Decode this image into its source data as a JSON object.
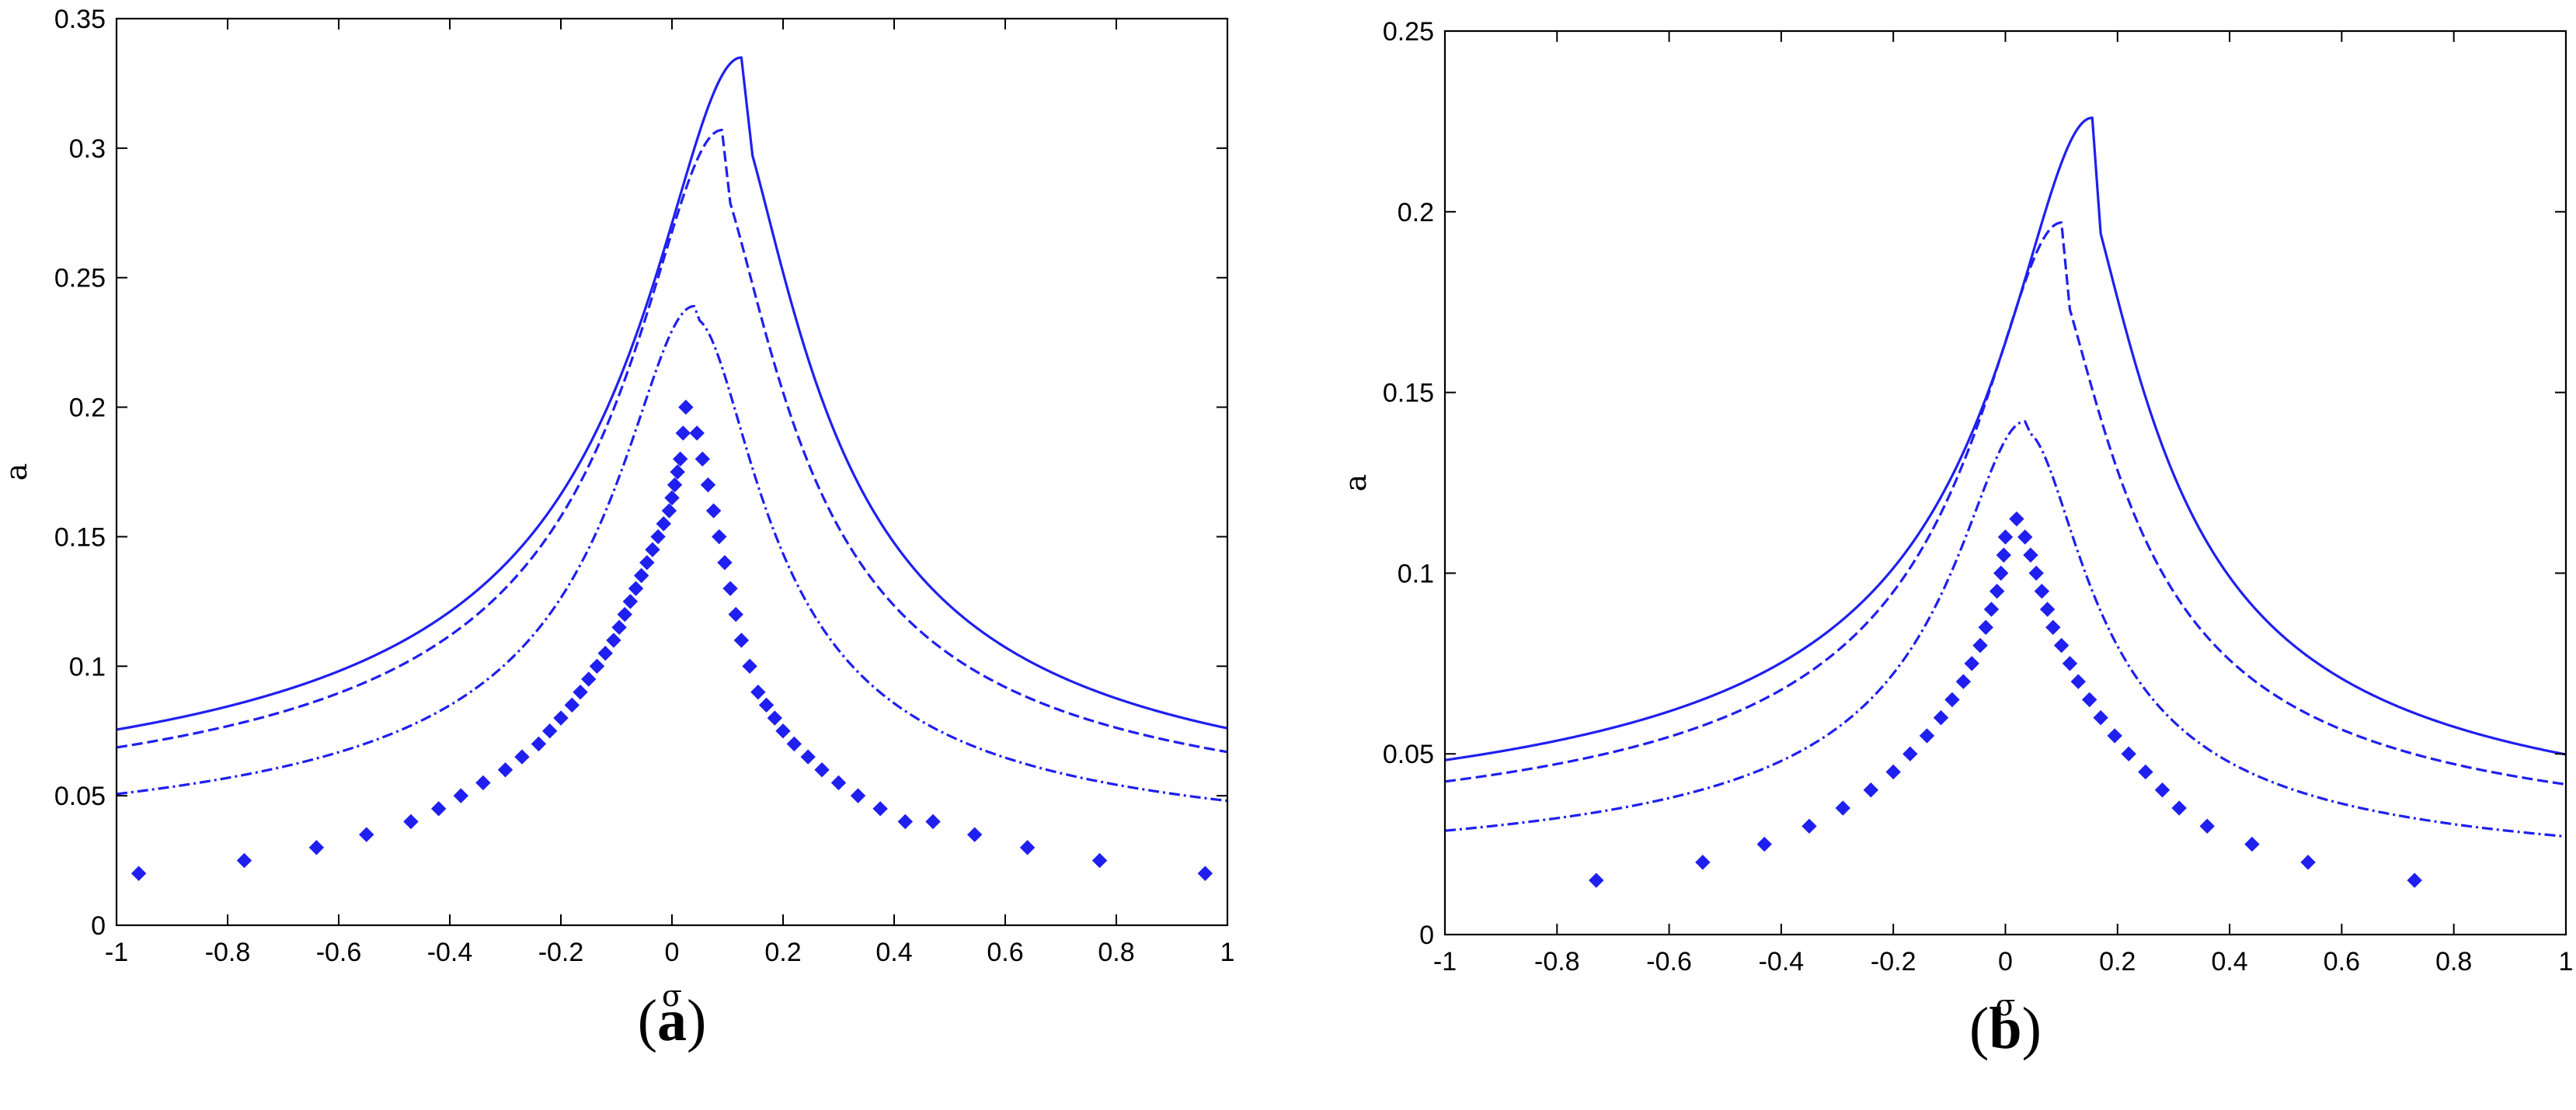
{
  "chart_data": [
    {
      "panel": "(a)",
      "panel_letter": "a",
      "type": "line",
      "xlabel": "σ",
      "ylabel": "a",
      "xlim": [
        -1,
        1
      ],
      "ylim": [
        0,
        0.35
      ],
      "xticks": [
        -1,
        -0.8,
        -0.6,
        -0.4,
        -0.2,
        0,
        0.2,
        0.4,
        0.6,
        0.8,
        1
      ],
      "xtick_labels": [
        "-1",
        "-0.8",
        "-0.6",
        "-0.4",
        "-0.2",
        "0",
        "0.2",
        "0.4",
        "0.6",
        "0.8",
        "1"
      ],
      "yticks": [
        0,
        0.05,
        0.1,
        0.15,
        0.2,
        0.25,
        0.3,
        0.35
      ],
      "ytick_labels": [
        "0",
        "0.05",
        "0.1",
        "0.15",
        "0.2",
        "0.25",
        "0.3",
        "0.35"
      ],
      "grid": false,
      "color": "#1f1ff0",
      "series": [
        {
          "style": "solid",
          "peak_x": 0.125,
          "peak_y": 0.335,
          "drop_x": 0.145,
          "base": 0.033,
          "shift": 0.012,
          "gamma": 0.16,
          "exponent": 0.5
        },
        {
          "style": "dashed",
          "peak_x": 0.09,
          "peak_y": 0.307,
          "drop_x": 0.105,
          "base": 0.031,
          "shift": 0.01,
          "gamma": 0.15,
          "exponent": 0.5
        },
        {
          "style": "dashdot",
          "peak_x": 0.04,
          "peak_y": 0.239,
          "drop_x": 0.05,
          "base": 0.024,
          "shift": 0.0,
          "gamma": 0.13,
          "exponent": 0.5
        },
        {
          "style": "markers",
          "peak_x": 0.025,
          "peak_y": 0.2,
          "base": 0.02,
          "points": [
            [
              -0.96,
              0.02
            ],
            [
              -0.77,
              0.025
            ],
            [
              -0.64,
              0.03
            ],
            [
              -0.55,
              0.035
            ],
            [
              -0.47,
              0.04
            ],
            [
              -0.42,
              0.045
            ],
            [
              -0.38,
              0.05
            ],
            [
              -0.34,
              0.055
            ],
            [
              -0.3,
              0.06
            ],
            [
              -0.27,
              0.065
            ],
            [
              -0.24,
              0.07
            ],
            [
              -0.22,
              0.075
            ],
            [
              -0.2,
              0.08
            ],
            [
              -0.18,
              0.085
            ],
            [
              -0.165,
              0.09
            ],
            [
              -0.15,
              0.095
            ],
            [
              -0.135,
              0.1
            ],
            [
              -0.12,
              0.105
            ],
            [
              -0.105,
              0.11
            ],
            [
              -0.095,
              0.115
            ],
            [
              -0.085,
              0.12
            ],
            [
              -0.075,
              0.125
            ],
            [
              -0.065,
              0.13
            ],
            [
              -0.055,
              0.135
            ],
            [
              -0.045,
              0.14
            ],
            [
              -0.035,
              0.145
            ],
            [
              -0.025,
              0.15
            ],
            [
              -0.015,
              0.155
            ],
            [
              -0.005,
              0.16
            ],
            [
              0.0,
              0.165
            ],
            [
              0.005,
              0.17
            ],
            [
              0.01,
              0.175
            ],
            [
              0.015,
              0.18
            ],
            [
              0.02,
              0.19
            ],
            [
              0.025,
              0.2
            ],
            [
              0.045,
              0.19
            ],
            [
              0.055,
              0.18
            ],
            [
              0.065,
              0.17
            ],
            [
              0.075,
              0.16
            ],
            [
              0.085,
              0.15
            ],
            [
              0.095,
              0.14
            ],
            [
              0.105,
              0.13
            ],
            [
              0.115,
              0.12
            ],
            [
              0.125,
              0.11
            ],
            [
              0.14,
              0.1
            ],
            [
              0.155,
              0.09
            ],
            [
              0.17,
              0.085
            ],
            [
              0.185,
              0.08
            ],
            [
              0.2,
              0.075
            ],
            [
              0.22,
              0.07
            ],
            [
              0.245,
              0.065
            ],
            [
              0.27,
              0.06
            ],
            [
              0.3,
              0.055
            ],
            [
              0.335,
              0.05
            ],
            [
              0.375,
              0.045
            ],
            [
              0.42,
              0.04
            ],
            [
              0.47,
              0.04
            ],
            [
              0.545,
              0.035
            ],
            [
              0.64,
              0.03
            ],
            [
              0.77,
              0.025
            ],
            [
              0.96,
              0.02
            ]
          ]
        }
      ]
    },
    {
      "panel": "(b)",
      "panel_letter": "b",
      "type": "line",
      "xlabel": "σ",
      "ylabel": "a",
      "xlim": [
        -1,
        1
      ],
      "ylim": [
        0,
        0.25
      ],
      "xticks": [
        -1,
        -0.8,
        -0.6,
        -0.4,
        -0.2,
        0,
        0.2,
        0.4,
        0.6,
        0.8,
        1
      ],
      "xtick_labels": [
        "-1",
        "-0.8",
        "-0.6",
        "-0.4",
        "-0.2",
        "0",
        "0.2",
        "0.4",
        "0.6",
        "0.8",
        "1"
      ],
      "yticks": [
        0,
        0.05,
        0.1,
        0.15,
        0.2,
        0.25
      ],
      "ytick_labels": [
        "0",
        "0.05",
        "0.1",
        "0.15",
        "0.2",
        "0.25"
      ],
      "grid": false,
      "color": "#1f1ff0",
      "series": [
        {
          "style": "solid",
          "peak_x": 0.155,
          "peak_y": 0.226,
          "drop_x": 0.17,
          "base": 0.022,
          "shift": 0.015,
          "gamma": 0.15,
          "exponent": 0.5
        },
        {
          "style": "dashed",
          "peak_x": 0.1,
          "peak_y": 0.197,
          "drop_x": 0.115,
          "base": 0.02,
          "shift": 0.012,
          "gamma": 0.14,
          "exponent": 0.5
        },
        {
          "style": "dashdot",
          "peak_x": 0.035,
          "peak_y": 0.142,
          "drop_x": 0.045,
          "base": 0.014,
          "shift": 0.0,
          "gamma": 0.12,
          "exponent": 0.5
        },
        {
          "style": "markers",
          "peak_x": 0.02,
          "peak_y": 0.115,
          "base": 0.015,
          "points": [
            [
              -0.73,
              0.015
            ],
            [
              -0.54,
              0.02
            ],
            [
              -0.43,
              0.025
            ],
            [
              -0.35,
              0.03
            ],
            [
              -0.29,
              0.035
            ],
            [
              -0.24,
              0.04
            ],
            [
              -0.2,
              0.045
            ],
            [
              -0.17,
              0.05
            ],
            [
              -0.14,
              0.055
            ],
            [
              -0.115,
              0.06
            ],
            [
              -0.095,
              0.065
            ],
            [
              -0.075,
              0.07
            ],
            [
              -0.06,
              0.075
            ],
            [
              -0.045,
              0.08
            ],
            [
              -0.035,
              0.085
            ],
            [
              -0.025,
              0.09
            ],
            [
              -0.015,
              0.095
            ],
            [
              -0.008,
              0.1
            ],
            [
              -0.003,
              0.105
            ],
            [
              0.0,
              0.11
            ],
            [
              0.02,
              0.115
            ],
            [
              0.035,
              0.11
            ],
            [
              0.045,
              0.105
            ],
            [
              0.055,
              0.1
            ],
            [
              0.065,
              0.095
            ],
            [
              0.075,
              0.09
            ],
            [
              0.085,
              0.085
            ],
            [
              0.1,
              0.08
            ],
            [
              0.115,
              0.075
            ],
            [
              0.13,
              0.07
            ],
            [
              0.15,
              0.065
            ],
            [
              0.17,
              0.06
            ],
            [
              0.195,
              0.055
            ],
            [
              0.22,
              0.05
            ],
            [
              0.25,
              0.045
            ],
            [
              0.28,
              0.04
            ],
            [
              0.31,
              0.035
            ],
            [
              0.36,
              0.03
            ],
            [
              0.44,
              0.025
            ],
            [
              0.54,
              0.02
            ],
            [
              0.73,
              0.015
            ]
          ]
        }
      ]
    }
  ]
}
